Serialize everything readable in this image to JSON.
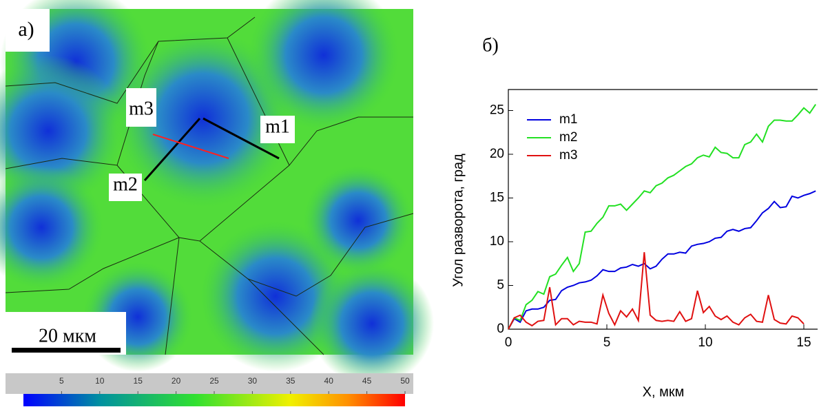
{
  "map": {
    "label": "а)",
    "line_labels": [
      "m1",
      "m2",
      "m3"
    ],
    "scale_bar": "20 мкм",
    "colorbar": {
      "lim": [
        0,
        50
      ],
      "ticks": [
        5,
        10,
        15,
        20,
        25,
        30,
        35,
        40,
        45,
        50
      ]
    }
  },
  "chart_data": {
    "type": "line",
    "panel_label": "б)",
    "x_label": "X, мкм",
    "y_label": "Угол разворота, град",
    "x": [
      0,
      0.3,
      0.6,
      0.9,
      1.2,
      1.5,
      1.8,
      2.1,
      2.4,
      2.7,
      3.0,
      3.3,
      3.6,
      3.9,
      4.2,
      4.5,
      4.8,
      5.1,
      5.4,
      5.7,
      6.0,
      6.3,
      6.6,
      6.9,
      7.2,
      7.5,
      7.8,
      8.1,
      8.4,
      8.7,
      9.0,
      9.3,
      9.6,
      9.9,
      10.2,
      10.5,
      10.8,
      11.1,
      11.4,
      11.7,
      12.0,
      12.3,
      12.6,
      12.9,
      13.2,
      13.5,
      13.8,
      14.1,
      14.4,
      14.7,
      15.0,
      15.3,
      15.6
    ],
    "series": [
      {
        "name": "m1",
        "color": "#0000e0",
        "values": [
          0,
          1.2,
          0.8,
          2.1,
          2.3,
          2.3,
          2.5,
          3.3,
          3.4,
          4.4,
          4.8,
          5.0,
          5.3,
          5.4,
          5.6,
          6.1,
          6.8,
          6.6,
          6.6,
          7.0,
          7.1,
          7.4,
          7.2,
          7.5,
          6.9,
          7.2,
          8.0,
          8.6,
          8.6,
          8.8,
          8.7,
          9.5,
          9.7,
          9.8,
          10.0,
          10.4,
          10.5,
          11.2,
          11.4,
          11.2,
          11.5,
          11.6,
          12.4,
          13.3,
          13.8,
          14.6,
          13.9,
          14.0,
          15.2,
          15.0,
          15.3,
          15.5,
          15.8
        ]
      },
      {
        "name": "m2",
        "color": "#22e022",
        "values": [
          0,
          1.3,
          1.0,
          2.8,
          3.3,
          4.3,
          4.0,
          6.0,
          6.3,
          7.3,
          8.2,
          6.6,
          7.5,
          11.1,
          11.2,
          12.1,
          12.8,
          14.1,
          14.1,
          14.3,
          13.6,
          14.3,
          15.0,
          15.8,
          15.6,
          16.4,
          16.7,
          17.3,
          17.6,
          18.1,
          18.6,
          18.9,
          19.6,
          19.9,
          19.7,
          20.8,
          20.2,
          20.1,
          19.6,
          19.6,
          21.1,
          21.4,
          22.3,
          21.4,
          23.2,
          23.9,
          23.9,
          23.8,
          23.8,
          24.5,
          25.3,
          24.7,
          25.7
        ]
      },
      {
        "name": "m3",
        "color": "#e01010",
        "values": [
          0,
          1.3,
          1.6,
          0.8,
          0.4,
          0.9,
          1.0,
          4.8,
          0.5,
          1.2,
          1.2,
          0.5,
          0.9,
          0.8,
          0.8,
          0.6,
          3.9,
          1.8,
          0.5,
          2.1,
          1.4,
          2.3,
          1.0,
          8.8,
          1.6,
          1.0,
          0.9,
          1.0,
          0.9,
          2.0,
          0.9,
          1.2,
          4.4,
          1.9,
          2.6,
          1.5,
          1.1,
          1.5,
          0.8,
          0.5,
          1.3,
          1.7,
          0.9,
          0.8,
          3.9,
          1.1,
          0.7,
          0.6,
          1.5,
          1.3,
          0.6,
          null,
          null
        ]
      }
    ],
    "xlim": [
      0,
      15.7
    ],
    "ylim": [
      0,
      27.4
    ],
    "xticks": [
      0,
      5,
      10,
      15
    ],
    "yticks": [
      0,
      5,
      10,
      15,
      20,
      25
    ],
    "legend": "upper left"
  }
}
